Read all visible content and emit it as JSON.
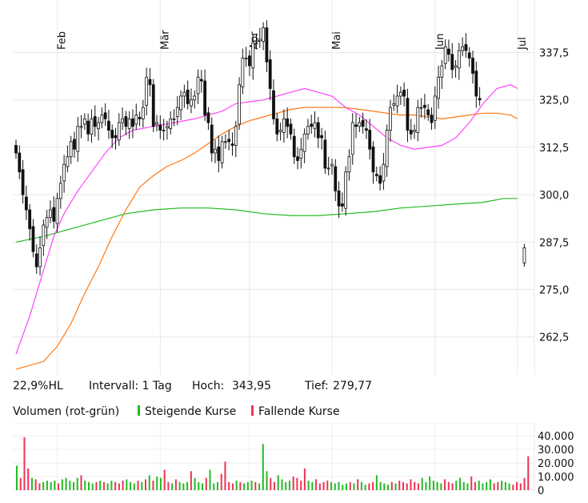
{
  "stats": {
    "hl": "22,9%HL",
    "interval": "Intervall: 1 Tag",
    "high_label": "Hoch:",
    "high_value": "343,95",
    "low_label": "Tief:",
    "low_value": "279,77"
  },
  "volume_legend": {
    "title": "Volumen (rot-grün)",
    "rising": "Steigende Kurse",
    "falling": "Fallende Kurse"
  },
  "colors": {
    "rising": "#22bb22",
    "falling": "#ee3355",
    "ma_short": "#ff44ff",
    "ma_mid": "#ff7711",
    "ma_long": "#22bb22",
    "candle": "#111111"
  },
  "chart_data": [
    {
      "type": "candlestick",
      "x_tick_labels": [
        "Feb",
        "Mär",
        "Apr",
        "Mai",
        "Jun",
        "Jul"
      ],
      "x_tick_days": [
        12,
        42,
        68,
        92,
        122,
        146
      ],
      "y_tick_labels": [
        "337,5",
        "325,0",
        "312,5",
        "300,0",
        "287,5",
        "275,0",
        "262,5"
      ],
      "y_ticks": [
        337.5,
        325.0,
        312.5,
        300.0,
        287.5,
        275.0,
        262.5
      ],
      "ylim": [
        252.5,
        345
      ],
      "grid": true,
      "closes": [
        311,
        306,
        300,
        296,
        291,
        285,
        281,
        286,
        292,
        294,
        296,
        293,
        299,
        303,
        308,
        310,
        314,
        312,
        318,
        318,
        320,
        316,
        320,
        318,
        319,
        321,
        320,
        317,
        315,
        315,
        319,
        320,
        318,
        320,
        318,
        321,
        320,
        323,
        331,
        329,
        318,
        319,
        317,
        317,
        318,
        320,
        320,
        323,
        326,
        327,
        324,
        325,
        326,
        331,
        330,
        321,
        319,
        311,
        312,
        309,
        314,
        314,
        314,
        313,
        318,
        329,
        336,
        336,
        334,
        340,
        340,
        341,
        344,
        335,
        328,
        320,
        316,
        317,
        320,
        318,
        316,
        310,
        309,
        312,
        316,
        318,
        318,
        319,
        315,
        315,
        307,
        307,
        308,
        301,
        297,
        297,
        306,
        310,
        319,
        318,
        319,
        318,
        317,
        312,
        306,
        305,
        303,
        308,
        317,
        323,
        324,
        326,
        327,
        326,
        317,
        316,
        317,
        323,
        323,
        323,
        321,
        319,
        326,
        331,
        334,
        339,
        337,
        333,
        334,
        338,
        339,
        338,
        336,
        332,
        326,
        325
      ],
      "gap_close": 284,
      "ma_short": [
        [
          0,
          258
        ],
        [
          4,
          268
        ],
        [
          8,
          280
        ],
        [
          11,
          289
        ],
        [
          14,
          295
        ],
        [
          18,
          301
        ],
        [
          22,
          306
        ],
        [
          26,
          311
        ],
        [
          30,
          315
        ],
        [
          34,
          317
        ],
        [
          40,
          318
        ],
        [
          46,
          319
        ],
        [
          52,
          320
        ],
        [
          56,
          321
        ],
        [
          60,
          322
        ],
        [
          64,
          324
        ],
        [
          68,
          324.5
        ],
        [
          72,
          325
        ],
        [
          76,
          326
        ],
        [
          80,
          327
        ],
        [
          84,
          328
        ],
        [
          88,
          327
        ],
        [
          92,
          326
        ],
        [
          96,
          323
        ],
        [
          100,
          321
        ],
        [
          104,
          318
        ],
        [
          108,
          315
        ],
        [
          112,
          313
        ],
        [
          116,
          312
        ],
        [
          120,
          312.5
        ],
        [
          124,
          313
        ],
        [
          128,
          315
        ],
        [
          132,
          319
        ],
        [
          136,
          324
        ],
        [
          140,
          328
        ],
        [
          144,
          329
        ],
        [
          146,
          328
        ]
      ],
      "ma_mid": [
        [
          0,
          254
        ],
        [
          4,
          255
        ],
        [
          8,
          256
        ],
        [
          12,
          260
        ],
        [
          16,
          266
        ],
        [
          20,
          274
        ],
        [
          24,
          281
        ],
        [
          28,
          289
        ],
        [
          32,
          296
        ],
        [
          36,
          302
        ],
        [
          40,
          305
        ],
        [
          44,
          307.5
        ],
        [
          48,
          309
        ],
        [
          52,
          311
        ],
        [
          56,
          313.5
        ],
        [
          60,
          316
        ],
        [
          64,
          318
        ],
        [
          68,
          319.5
        ],
        [
          72,
          320.5
        ],
        [
          76,
          321.5
        ],
        [
          80,
          322.5
        ],
        [
          84,
          323
        ],
        [
          88,
          323
        ],
        [
          92,
          323
        ],
        [
          96,
          323
        ],
        [
          100,
          322.5
        ],
        [
          104,
          322
        ],
        [
          108,
          321.5
        ],
        [
          112,
          321
        ],
        [
          116,
          321
        ],
        [
          120,
          320.5
        ],
        [
          124,
          320
        ],
        [
          128,
          320.5
        ],
        [
          132,
          321
        ],
        [
          136,
          321.5
        ],
        [
          140,
          321.5
        ],
        [
          144,
          321
        ],
        [
          146,
          320
        ]
      ],
      "ma_long": [
        [
          0,
          287.5
        ],
        [
          8,
          289
        ],
        [
          16,
          291
        ],
        [
          24,
          293
        ],
        [
          32,
          295
        ],
        [
          40,
          296
        ],
        [
          48,
          296.5
        ],
        [
          56,
          296.5
        ],
        [
          64,
          296
        ],
        [
          72,
          295
        ],
        [
          80,
          294.5
        ],
        [
          88,
          294.5
        ],
        [
          96,
          295
        ],
        [
          104,
          295.5
        ],
        [
          112,
          296.5
        ],
        [
          120,
          297
        ],
        [
          128,
          297.5
        ],
        [
          136,
          298
        ],
        [
          142,
          299
        ],
        [
          146,
          299
        ]
      ]
    },
    {
      "type": "bar",
      "title": "Volumen (rot-grün)",
      "y_tick_labels": [
        "40.000",
        "30.000",
        "20.000",
        "10.000",
        "0"
      ],
      "y_ticks": [
        40000,
        30000,
        20000,
        10000,
        0
      ],
      "ylim": [
        0,
        46000
      ],
      "volumes": [
        18000,
        9000,
        39000,
        16000,
        9000,
        8000,
        5000,
        6000,
        7000,
        6000,
        7000,
        5000,
        8000,
        9000,
        7000,
        6000,
        9000,
        11000,
        7000,
        6000,
        5000,
        6000,
        7000,
        6000,
        5000,
        7000,
        6000,
        5000,
        7000,
        8000,
        6000,
        5000,
        7000,
        6000,
        8000,
        11000,
        7000,
        10000,
        9000,
        15000,
        6000,
        5000,
        8000,
        6000,
        5000,
        6000,
        14000,
        9000,
        6000,
        5000,
        9000,
        15000,
        5000,
        6000,
        12000,
        21000,
        6000,
        5000,
        7000,
        6000,
        5000,
        6000,
        7000,
        6000,
        5000,
        34000,
        14000,
        9000,
        6000,
        11000,
        8000,
        6000,
        7000,
        10000,
        9000,
        7000,
        16000,
        7000,
        6000,
        8000,
        5000,
        6000,
        7000,
        6000,
        5000,
        6000,
        4000,
        5000,
        6000,
        5000,
        8000,
        6000,
        4000,
        5000,
        6000,
        11000,
        6000,
        5000,
        4000,
        6000,
        5000,
        7000,
        6000,
        5000,
        8000,
        6000,
        5000,
        9000,
        6000,
        10000,
        7000,
        6000,
        5000,
        8000,
        6000,
        5000,
        7000,
        9000,
        6000,
        5000,
        10000,
        6000,
        7000,
        5000,
        6000,
        8000,
        5000,
        6000,
        7000,
        6000,
        5000,
        4000,
        6000,
        5000,
        9000,
        25000
      ],
      "rising": [
        true,
        false,
        false,
        false,
        true,
        false,
        false,
        true,
        true,
        true,
        true,
        false,
        true,
        true,
        true,
        true,
        true,
        false,
        true,
        true,
        true,
        false,
        true,
        false,
        true,
        true,
        false,
        false,
        false,
        true,
        true,
        true,
        false,
        true,
        false,
        true,
        false,
        true,
        true,
        false,
        false,
        true,
        false,
        true,
        true,
        true,
        false,
        true,
        true,
        true,
        false,
        true,
        true,
        true,
        false,
        false,
        false,
        false,
        true,
        false,
        true,
        true,
        true,
        false,
        true,
        true,
        true,
        false,
        false,
        true,
        true,
        true,
        true,
        false,
        false,
        false,
        false,
        true,
        true,
        false,
        false,
        false,
        false,
        true,
        true,
        true,
        true,
        true,
        false,
        true,
        false,
        true,
        true,
        false,
        false,
        true,
        true,
        true,
        true,
        false,
        true,
        false,
        false,
        false,
        false,
        false,
        false,
        true,
        true,
        true,
        true,
        true,
        true,
        false,
        false,
        false,
        true,
        true,
        true,
        true,
        false,
        false,
        true,
        true,
        true,
        true,
        false,
        false,
        true,
        true,
        true,
        false,
        false,
        false,
        false,
        false
      ]
    }
  ]
}
